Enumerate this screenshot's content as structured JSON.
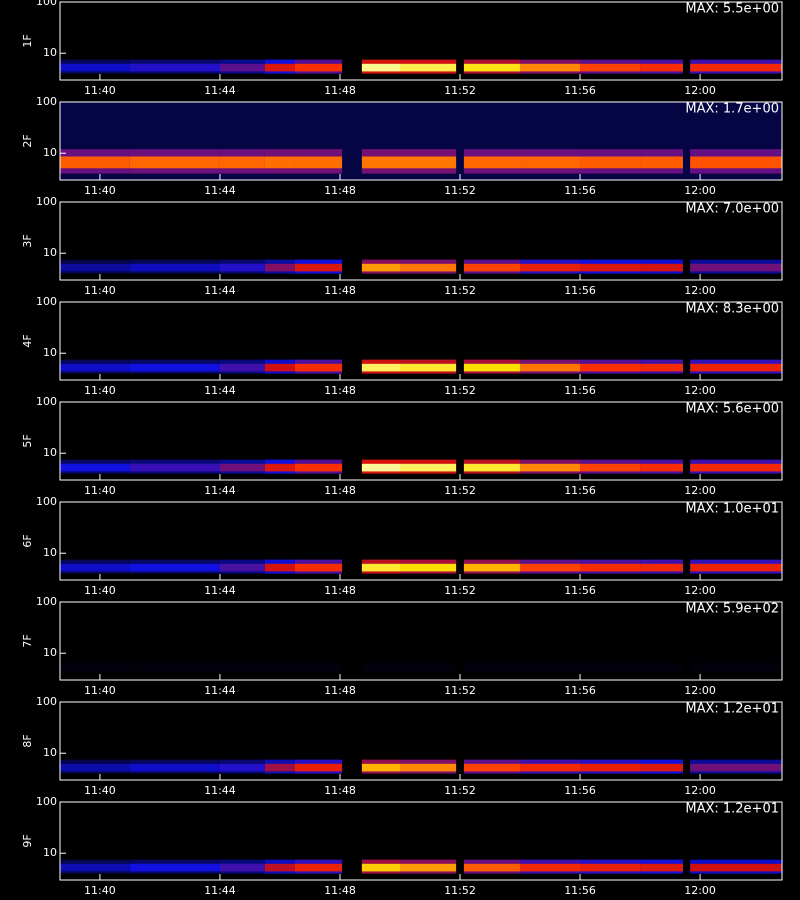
{
  "chart_data": {
    "type": "heatmap",
    "xlim": [
      698.67,
      722.73
    ],
    "xticks": [
      {
        "value": 700,
        "label": "11:40"
      },
      {
        "value": 704,
        "label": "11:44"
      },
      {
        "value": 708,
        "label": "11:48"
      },
      {
        "value": 712,
        "label": "11:52"
      },
      {
        "value": 716,
        "label": "11:56"
      },
      {
        "value": 720,
        "label": "12:00"
      }
    ],
    "ylim": [
      3,
      100
    ],
    "yticks": [
      10,
      100
    ],
    "log_y": true,
    "colormap": [
      "#000000",
      "#1010e0",
      "#d01010",
      "#ff3000",
      "#ffe000",
      "#ffffc0"
    ],
    "bin_edges": [
      698.67,
      701,
      704,
      705.5,
      706.5,
      708.07,
      708.73,
      710,
      711.87,
      712.13,
      714,
      716,
      718,
      719.43,
      719.67,
      722.73
    ],
    "panels": [
      {
        "label": "1F",
        "max_label": "MAX: 5.5e+00",
        "band": [
          4,
          7.5
        ],
        "background": 0,
        "intensity": [
          0.18,
          0.22,
          0.28,
          0.45,
          0.6,
          null,
          0.95,
          0.88,
          null,
          0.82,
          0.7,
          0.62,
          0.58,
          null,
          0.55
        ]
      },
      {
        "label": "2F",
        "max_label": "MAX: 1.7e+00",
        "band": [
          4,
          12
        ],
        "background": 0.06,
        "intensity": [
          0.65,
          0.66,
          0.66,
          0.67,
          0.67,
          null,
          0.68,
          0.68,
          null,
          0.66,
          0.66,
          0.65,
          0.65,
          null,
          0.64
        ]
      },
      {
        "label": "3F",
        "max_label": "MAX: 7.0e+00",
        "band": [
          4,
          7.5
        ],
        "background": 0,
        "intensity": [
          0.14,
          0.17,
          0.22,
          0.32,
          0.45,
          null,
          0.72,
          0.68,
          null,
          0.62,
          0.5,
          0.45,
          0.42,
          null,
          0.3
        ]
      },
      {
        "label": "4F",
        "max_label": "MAX: 8.3e+00",
        "band": [
          4,
          7.5
        ],
        "background": 0,
        "intensity": [
          0.18,
          0.2,
          0.25,
          0.4,
          0.58,
          null,
          0.9,
          0.85,
          null,
          0.8,
          0.68,
          0.6,
          0.56,
          null,
          0.52
        ]
      },
      {
        "label": "5F",
        "max_label": "MAX: 5.6e+00",
        "band": [
          4,
          7.5
        ],
        "background": 0,
        "intensity": [
          0.2,
          0.24,
          0.3,
          0.45,
          0.6,
          null,
          0.96,
          0.9,
          null,
          0.85,
          0.7,
          0.62,
          0.58,
          null,
          0.55
        ]
      },
      {
        "label": "6F",
        "max_label": "MAX: 1.0e+01",
        "band": [
          4,
          7.5
        ],
        "background": 0,
        "intensity": [
          0.18,
          0.2,
          0.26,
          0.42,
          0.58,
          null,
          0.85,
          0.8,
          null,
          0.75,
          0.62,
          0.58,
          0.55,
          null,
          0.52
        ]
      },
      {
        "label": "7F",
        "max_label": "MAX: 5.9e+02",
        "band": [
          4,
          7.5
        ],
        "background": 0,
        "intensity": [
          0.01,
          0.01,
          0.01,
          0.01,
          0.01,
          null,
          0.01,
          0.01,
          null,
          0.01,
          0.01,
          0.01,
          0.01,
          null,
          0.01
        ]
      },
      {
        "label": "8F",
        "max_label": "MAX: 1.2e+01",
        "band": [
          4,
          7.5
        ],
        "background": 0,
        "intensity": [
          0.15,
          0.18,
          0.22,
          0.35,
          0.5,
          null,
          0.75,
          0.7,
          null,
          0.62,
          0.55,
          0.5,
          0.45,
          null,
          0.3
        ]
      },
      {
        "label": "9F",
        "max_label": "MAX: 1.2e+01",
        "band": [
          4,
          7.5
        ],
        "background": 0,
        "intensity": [
          0.16,
          0.2,
          0.25,
          0.38,
          0.52,
          null,
          0.78,
          0.72,
          null,
          0.65,
          0.55,
          0.5,
          0.46,
          null,
          0.4
        ]
      }
    ]
  }
}
